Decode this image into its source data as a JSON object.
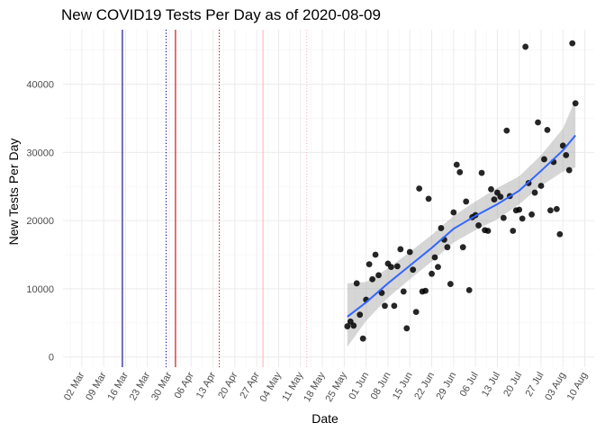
{
  "chart_data": {
    "type": "scatter",
    "title": "New COVID19 Tests Per Day as of 2020-08-09",
    "xlabel": "Date",
    "ylabel": "New Tests Per Day",
    "xlim": [
      "2020-02-25",
      "2020-08-13"
    ],
    "ylim": [
      -1500,
      48000
    ],
    "x_tick_labels": [
      "02 Mar",
      "09 Mar",
      "16 Mar",
      "23 Mar",
      "30 Mar",
      "06 Apr",
      "13 Apr",
      "20 Apr",
      "27 Apr",
      "04 May",
      "11 May",
      "18 May",
      "25 May",
      "01 Jun",
      "08 Jun",
      "15 Jun",
      "22 Jun",
      "29 Jun",
      "06 Jul",
      "13 Jul",
      "20 Jul",
      "27 Jul",
      "03 Aug",
      "10 Aug"
    ],
    "x_tick_dates": [
      "2020-03-02",
      "2020-03-09",
      "2020-03-16",
      "2020-03-23",
      "2020-03-30",
      "2020-04-06",
      "2020-04-13",
      "2020-04-20",
      "2020-04-27",
      "2020-05-04",
      "2020-05-11",
      "2020-05-18",
      "2020-05-25",
      "2020-06-01",
      "2020-06-08",
      "2020-06-15",
      "2020-06-22",
      "2020-06-29",
      "2020-07-06",
      "2020-07-13",
      "2020-07-20",
      "2020-07-27",
      "2020-08-03",
      "2020-08-10"
    ],
    "y_ticks": [
      0,
      10000,
      20000,
      30000,
      40000
    ],
    "y_tick_labels": [
      "0",
      "10000",
      "20000",
      "30000",
      "40000"
    ],
    "grid": true,
    "vertical_lines": [
      {
        "date": "2020-03-15",
        "color": "#00008b",
        "style": "solid"
      },
      {
        "date": "2020-03-29",
        "color": "#00008b",
        "style": "dotted"
      },
      {
        "date": "2020-04-01",
        "color": "#cc0000",
        "style": "solid"
      },
      {
        "date": "2020-04-15",
        "color": "#cc0000",
        "style": "dotted"
      },
      {
        "date": "2020-04-29",
        "color": "#ffb6c1",
        "style": "solid"
      },
      {
        "date": "2020-05-13",
        "color": "#ffb6c1",
        "style": "dotted"
      }
    ],
    "points": [
      [
        "2020-05-26",
        4500
      ],
      [
        "2020-05-27",
        5200
      ],
      [
        "2020-05-28",
        4600
      ],
      [
        "2020-05-29",
        10800
      ],
      [
        "2020-05-30",
        6200
      ],
      [
        "2020-05-31",
        2700
      ],
      [
        "2020-06-01",
        8400
      ],
      [
        "2020-06-02",
        13600
      ],
      [
        "2020-06-03",
        11400
      ],
      [
        "2020-06-04",
        15000
      ],
      [
        "2020-06-05",
        12000
      ],
      [
        "2020-06-06",
        9400
      ],
      [
        "2020-06-07",
        7500
      ],
      [
        "2020-06-08",
        13700
      ],
      [
        "2020-06-09",
        13200
      ],
      [
        "2020-06-10",
        7500
      ],
      [
        "2020-06-11",
        13300
      ],
      [
        "2020-06-12",
        15800
      ],
      [
        "2020-06-13",
        9600
      ],
      [
        "2020-06-14",
        4200
      ],
      [
        "2020-06-15",
        15400
      ],
      [
        "2020-06-16",
        12800
      ],
      [
        "2020-06-17",
        6600
      ],
      [
        "2020-06-18",
        24700
      ],
      [
        "2020-06-19",
        9600
      ],
      [
        "2020-06-20",
        9700
      ],
      [
        "2020-06-21",
        23200
      ],
      [
        "2020-06-22",
        12200
      ],
      [
        "2020-06-23",
        14600
      ],
      [
        "2020-06-24",
        13200
      ],
      [
        "2020-06-25",
        18900
      ],
      [
        "2020-06-26",
        17200
      ],
      [
        "2020-06-27",
        16100
      ],
      [
        "2020-06-28",
        10700
      ],
      [
        "2020-06-29",
        21200
      ],
      [
        "2020-06-30",
        28200
      ],
      [
        "2020-07-01",
        27100
      ],
      [
        "2020-07-02",
        16100
      ],
      [
        "2020-07-03",
        22800
      ],
      [
        "2020-07-04",
        9800
      ],
      [
        "2020-07-05",
        20500
      ],
      [
        "2020-07-06",
        20800
      ],
      [
        "2020-07-07",
        19300
      ],
      [
        "2020-07-08",
        27000
      ],
      [
        "2020-07-09",
        18600
      ],
      [
        "2020-07-10",
        18500
      ],
      [
        "2020-07-11",
        24600
      ],
      [
        "2020-07-12",
        23100
      ],
      [
        "2020-07-13",
        24100
      ],
      [
        "2020-07-14",
        23500
      ],
      [
        "2020-07-15",
        20400
      ],
      [
        "2020-07-16",
        33200
      ],
      [
        "2020-07-17",
        23600
      ],
      [
        "2020-07-18",
        18500
      ],
      [
        "2020-07-19",
        21500
      ],
      [
        "2020-07-20",
        21600
      ],
      [
        "2020-07-21",
        20300
      ],
      [
        "2020-07-22",
        45500
      ],
      [
        "2020-07-23",
        25500
      ],
      [
        "2020-07-24",
        20900
      ],
      [
        "2020-07-25",
        24100
      ],
      [
        "2020-07-26",
        34400
      ],
      [
        "2020-07-27",
        25100
      ],
      [
        "2020-07-28",
        29000
      ],
      [
        "2020-07-29",
        33300
      ],
      [
        "2020-07-30",
        21500
      ],
      [
        "2020-07-31",
        28600
      ],
      [
        "2020-08-01",
        21700
      ],
      [
        "2020-08-02",
        18000
      ],
      [
        "2020-08-03",
        31000
      ],
      [
        "2020-08-04",
        29600
      ],
      [
        "2020-08-05",
        27400
      ],
      [
        "2020-08-06",
        46000
      ],
      [
        "2020-08-07",
        37200
      ]
    ],
    "smooth": {
      "color": "#3366ff",
      "band_color": "#999999",
      "line": [
        [
          "2020-05-26",
          5900
        ],
        [
          "2020-06-01",
          8000
        ],
        [
          "2020-06-08",
          10800
        ],
        [
          "2020-06-15",
          13400
        ],
        [
          "2020-06-22",
          16000
        ],
        [
          "2020-06-29",
          18800
        ],
        [
          "2020-07-06",
          20700
        ],
        [
          "2020-07-13",
          22400
        ],
        [
          "2020-07-20",
          24400
        ],
        [
          "2020-07-27",
          27300
        ],
        [
          "2020-08-03",
          30300
        ],
        [
          "2020-08-07",
          32500
        ]
      ],
      "upper": [
        [
          "2020-05-26",
          10800
        ],
        [
          "2020-06-01",
          11000
        ],
        [
          "2020-06-08",
          13000
        ],
        [
          "2020-06-15",
          15400
        ],
        [
          "2020-06-22",
          17900
        ],
        [
          "2020-06-29",
          20700
        ],
        [
          "2020-07-06",
          22800
        ],
        [
          "2020-07-13",
          24800
        ],
        [
          "2020-07-20",
          26500
        ],
        [
          "2020-07-27",
          29600
        ],
        [
          "2020-08-03",
          33500
        ],
        [
          "2020-08-07",
          37800
        ]
      ],
      "lower": [
        [
          "2020-05-26",
          1500
        ],
        [
          "2020-06-01",
          5300
        ],
        [
          "2020-06-08",
          8700
        ],
        [
          "2020-06-15",
          11400
        ],
        [
          "2020-06-22",
          14000
        ],
        [
          "2020-06-29",
          16800
        ],
        [
          "2020-07-06",
          18600
        ],
        [
          "2020-07-13",
          20200
        ],
        [
          "2020-07-20",
          22400
        ],
        [
          "2020-07-27",
          25100
        ],
        [
          "2020-08-03",
          27200
        ],
        [
          "2020-08-07",
          27800
        ]
      ]
    }
  }
}
